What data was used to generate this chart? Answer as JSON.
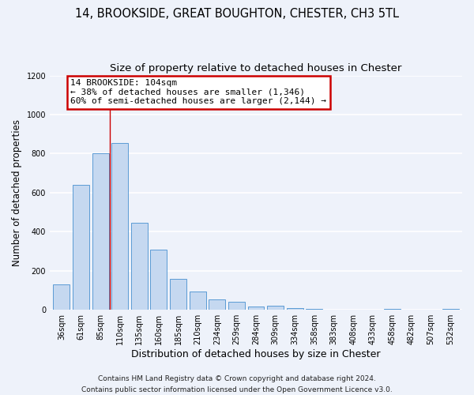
{
  "title": "14, BROOKSIDE, GREAT BOUGHTON, CHESTER, CH3 5TL",
  "subtitle": "Size of property relative to detached houses in Chester",
  "xlabel": "Distribution of detached houses by size in Chester",
  "ylabel": "Number of detached properties",
  "bar_labels": [
    "36sqm",
    "61sqm",
    "85sqm",
    "110sqm",
    "135sqm",
    "160sqm",
    "185sqm",
    "210sqm",
    "234sqm",
    "259sqm",
    "284sqm",
    "309sqm",
    "334sqm",
    "358sqm",
    "383sqm",
    "408sqm",
    "433sqm",
    "458sqm",
    "482sqm",
    "507sqm",
    "532sqm"
  ],
  "bar_values": [
    130,
    640,
    800,
    855,
    445,
    310,
    158,
    93,
    52,
    43,
    17,
    22,
    10,
    5,
    0,
    0,
    0,
    5,
    0,
    0,
    5
  ],
  "bar_color": "#c5d8f0",
  "bar_edge_color": "#5b9bd5",
  "vline_x": 2.5,
  "vline_color": "#cc0000",
  "annotation_title": "14 BROOKSIDE: 104sqm",
  "annotation_line1": "← 38% of detached houses are smaller (1,346)",
  "annotation_line2": "60% of semi-detached houses are larger (2,144) →",
  "annotation_box_color": "#cc0000",
  "annotation_bg": "#ffffff",
  "ylim": [
    0,
    1200
  ],
  "yticks": [
    0,
    200,
    400,
    600,
    800,
    1000,
    1200
  ],
  "footer_line1": "Contains HM Land Registry data © Crown copyright and database right 2024.",
  "footer_line2": "Contains public sector information licensed under the Open Government Licence v3.0.",
  "bg_color": "#eef2fa",
  "grid_color": "#ffffff",
  "title_fontsize": 10.5,
  "subtitle_fontsize": 9.5,
  "xlabel_fontsize": 9,
  "ylabel_fontsize": 8.5,
  "tick_fontsize": 7,
  "footer_fontsize": 6.5,
  "ann_fontsize": 8
}
